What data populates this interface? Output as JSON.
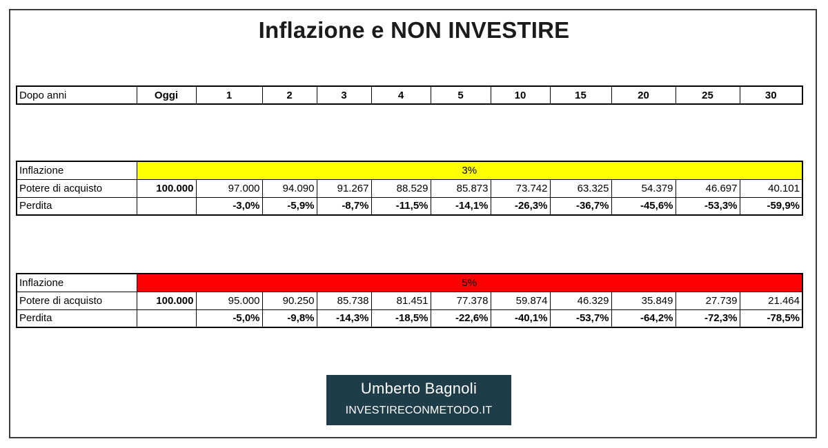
{
  "title": "Inflazione e NON INVESTIRE",
  "header_row": {
    "label": "Dopo anni",
    "columns": [
      "Oggi",
      "1",
      "2",
      "3",
      "4",
      "5",
      "10",
      "15",
      "20",
      "25",
      "30"
    ]
  },
  "scenarios": [
    {
      "inflation_label": "Inflazione",
      "rate": "3%",
      "rate_color": "#ffff00",
      "purchasing_label": "Potere di acquisto",
      "base_value": "100.000",
      "purchasing_values": [
        "97.000",
        "94.090",
        "91.267",
        "88.529",
        "85.873",
        "73.742",
        "63.325",
        "54.379",
        "46.697",
        "40.101"
      ],
      "loss_label": "Perdita",
      "loss_values": [
        "-3,0%",
        "-5,9%",
        "-8,7%",
        "-11,5%",
        "-14,1%",
        "-26,3%",
        "-36,7%",
        "-45,6%",
        "-53,3%",
        "-59,9%"
      ]
    },
    {
      "inflation_label": "Inflazione",
      "rate": "5%",
      "rate_color": "#ff0000",
      "purchasing_label": "Potere di acquisto",
      "base_value": "100.000",
      "purchasing_values": [
        "95.000",
        "90.250",
        "85.738",
        "81.451",
        "77.378",
        "59.874",
        "46.329",
        "35.849",
        "27.739",
        "21.464"
      ],
      "loss_label": "Perdita",
      "loss_values": [
        "-5,0%",
        "-9,8%",
        "-14,3%",
        "-18,5%",
        "-22,6%",
        "-40,1%",
        "-53,7%",
        "-64,2%",
        "-72,3%",
        "-78,5%"
      ]
    }
  ],
  "brand": {
    "name": "Umberto Bagnoli",
    "site": "INVESTIRECONMETODO.IT"
  }
}
